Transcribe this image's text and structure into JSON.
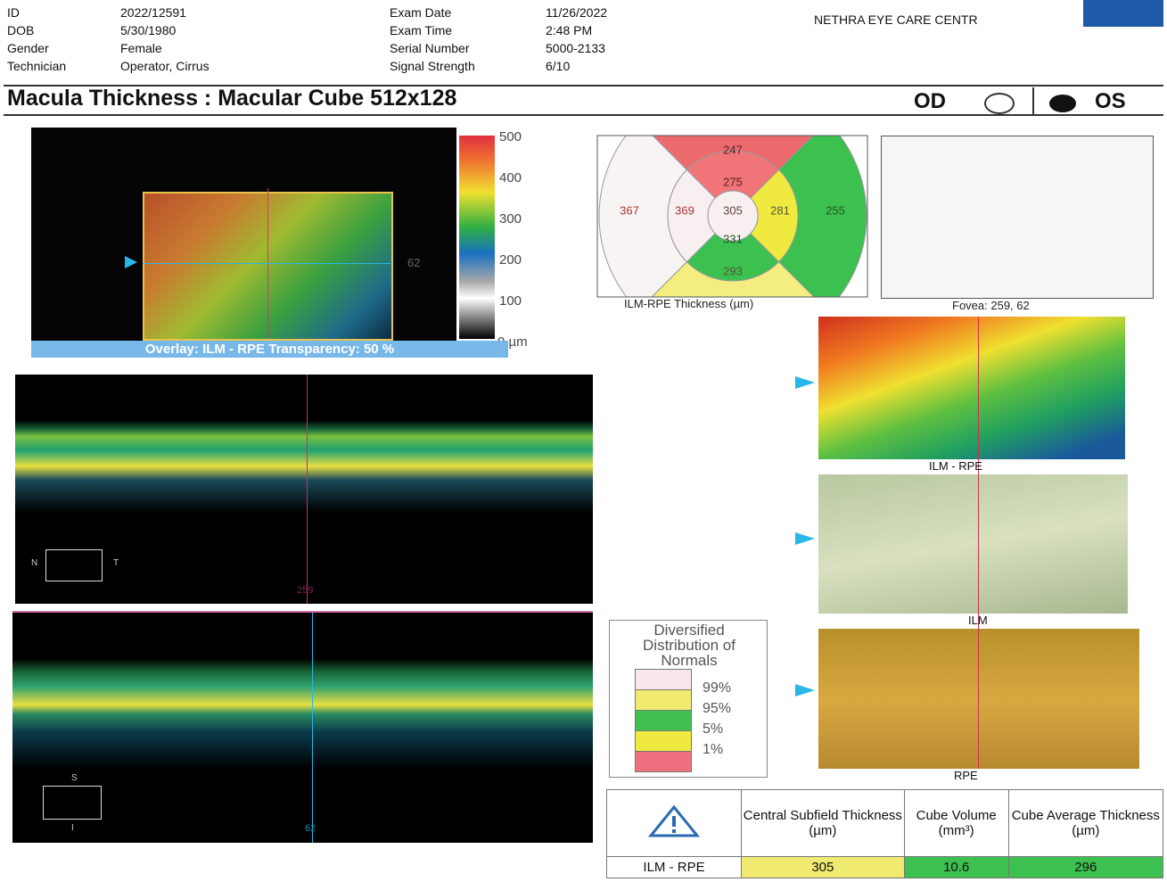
{
  "header": {
    "patient": [
      {
        "label": "ID",
        "value": "2022/12591"
      },
      {
        "label": "DOB",
        "value": "5/30/1980"
      },
      {
        "label": "Gender",
        "value": "Female"
      },
      {
        "label": "Technician",
        "value": "Operator, Cirrus"
      }
    ],
    "exam": [
      {
        "label": "Exam Date",
        "value": "11/26/2022"
      },
      {
        "label": "Exam Time",
        "value": "2:48 PM"
      },
      {
        "label": "Serial Number",
        "value": "5000-2133"
      },
      {
        "label": "Signal Strength",
        "value": "6/10"
      }
    ],
    "clinic": "NETHRA EYE CARE CENTR"
  },
  "title": "Macula Thickness : Macular Cube 512x128",
  "eye_od": "OD",
  "eye_os": "OS",
  "colorbar": {
    "ticks": [
      "500",
      "400",
      "300",
      "200",
      "100",
      "0 µm"
    ]
  },
  "fundus": {
    "marker": "62",
    "caption": "Overlay: ILM - RPE  Transparency: 50 %"
  },
  "bscan_horizontal": {
    "left": "N",
    "right": "T",
    "bottom": "259"
  },
  "bscan_vertical": {
    "top": "S",
    "bottom_mark": "I",
    "bottom": "62"
  },
  "thickness_map": {
    "outer_superior": "247",
    "inner_superior": "275",
    "outer_temporal": "367",
    "inner_temporal": "369",
    "center": "305",
    "inner_nasal": "281",
    "outer_nasal": "255",
    "inner_inferior": "331",
    "outer_inferior": "293",
    "caption": "ILM-RPE Thickness (µm)"
  },
  "fovea": {
    "caption": "Fovea: 259, 62"
  },
  "side_images": [
    "ILM - RPE",
    "ILM",
    "RPE"
  ],
  "normals_legend": {
    "title": "Diversified Distribution of Normals",
    "levels": [
      "99%",
      "95%",
      "5%",
      "1%"
    ]
  },
  "table": {
    "headers": [
      "Central Subfield Thickness (µm)",
      "Cube Volume (mm³)",
      "Cube Average Thickness (µm)"
    ],
    "row_label": "ILM - RPE",
    "values": [
      "305",
      "10.6",
      "296"
    ]
  }
}
